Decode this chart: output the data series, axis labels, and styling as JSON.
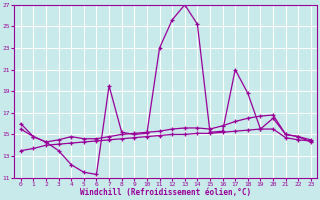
{
  "background_color": "#c8eaea",
  "grid_color": "#ffffff",
  "line_color": "#990099",
  "xlabel": "Windchill (Refroidissement éolien,°C)",
  "xlim": [
    -0.5,
    23.5
  ],
  "ylim": [
    11,
    27
  ],
  "yticks": [
    11,
    13,
    15,
    17,
    19,
    21,
    23,
    25,
    27
  ],
  "xticks": [
    0,
    1,
    2,
    3,
    4,
    5,
    6,
    7,
    8,
    9,
    10,
    11,
    12,
    13,
    14,
    15,
    16,
    17,
    18,
    19,
    20,
    21,
    22,
    23
  ],
  "series": [
    [
      16.0,
      14.8,
      14.3,
      13.5,
      12.2,
      11.5,
      11.3,
      19.5,
      15.2,
      15.0,
      15.1,
      23.0,
      25.6,
      27.0,
      25.2,
      15.2,
      15.3,
      21.0,
      18.8,
      15.5,
      16.5,
      15.0,
      14.8,
      14.3
    ],
    [
      15.5,
      14.8,
      14.3,
      14.5,
      14.8,
      14.6,
      14.6,
      14.8,
      15.0,
      15.1,
      15.2,
      15.3,
      15.5,
      15.6,
      15.6,
      15.5,
      15.8,
      16.2,
      16.5,
      16.7,
      16.8,
      15.0,
      14.8,
      14.5
    ],
    [
      13.5,
      13.7,
      14.0,
      14.1,
      14.2,
      14.3,
      14.4,
      14.5,
      14.6,
      14.7,
      14.8,
      14.9,
      15.0,
      15.0,
      15.1,
      15.1,
      15.2,
      15.3,
      15.4,
      15.5,
      15.5,
      14.7,
      14.5,
      14.4
    ]
  ]
}
